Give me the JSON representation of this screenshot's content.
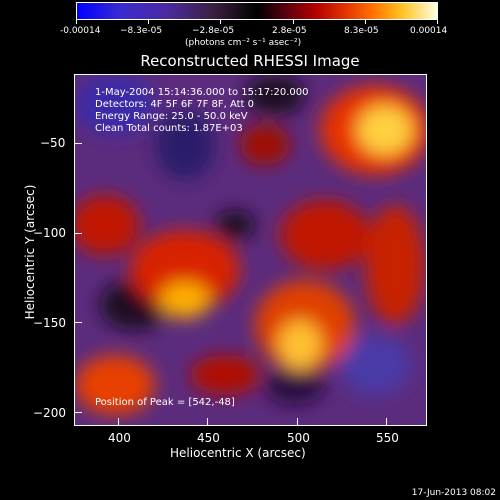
{
  "colorbar": {
    "ticks": [
      "-0.00014",
      "−8.3e-05",
      "−2.8e-05",
      "2.8e-05",
      "8.3e-05",
      "0.00014"
    ],
    "unit": "(photons cm⁻² s⁻¹ asec⁻²)"
  },
  "image": {
    "title": "Reconstructed RHESSI Image",
    "info_time": "1-May-2004 15:14:36.000 to 15:17:20.000",
    "info_detectors": "Detectors: 4F 5F 6F 7F 8F, Att 0",
    "info_energy": "Energy Range: 25.0 - 50.0 keV",
    "info_clean": "Clean    Total counts: 1.87E+03",
    "peak": "Position of Peak = [542,-48]"
  },
  "axes": {
    "xlabel": "Heliocentric X (arcsec)",
    "ylabel": "Heliocentric Y (arcsec)",
    "xticks": [
      "400",
      "450",
      "500",
      "550"
    ],
    "yticks": [
      "−50",
      "−100",
      "−150",
      "−200"
    ]
  },
  "timestamp": "17-Jun-2013 08:02"
}
